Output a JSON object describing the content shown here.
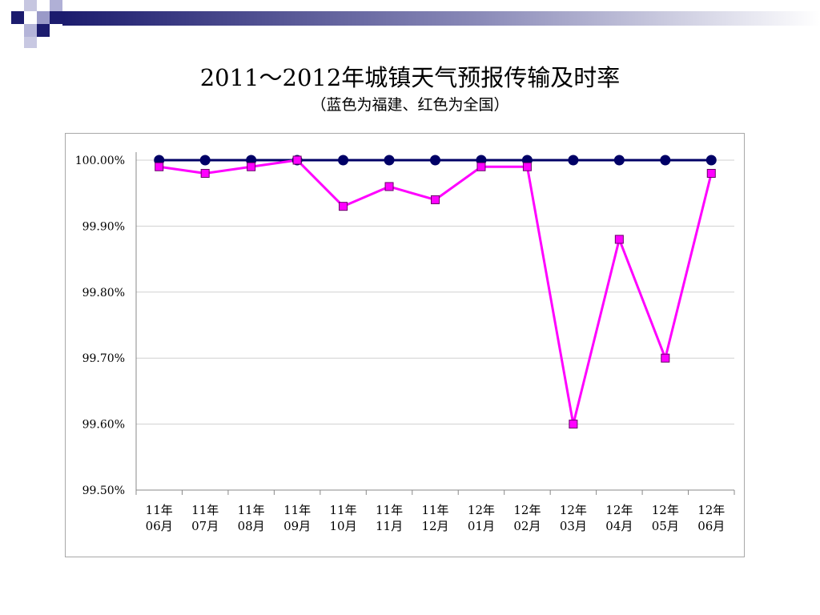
{
  "slide": {
    "title": "2011～2012年城镇天气预报传输及时率",
    "subtitle": "（蓝色为福建、红色为全国）"
  },
  "chart_data": {
    "type": "line",
    "title": "2011～2012年城镇天气预报传输及时率",
    "subtitle": "（蓝色为福建、红色为全国）",
    "categories": [
      [
        "11年",
        "06月"
      ],
      [
        "11年",
        "07月"
      ],
      [
        "11年",
        "08月"
      ],
      [
        "11年",
        "09月"
      ],
      [
        "11年",
        "10月"
      ],
      [
        "11年",
        "11月"
      ],
      [
        "11年",
        "12月"
      ],
      [
        "12年",
        "01月"
      ],
      [
        "12年",
        "02月"
      ],
      [
        "12年",
        "03月"
      ],
      [
        "12年",
        "04月"
      ],
      [
        "12年",
        "05月"
      ],
      [
        "12年",
        "06月"
      ]
    ],
    "series": [
      {
        "color": "#000066",
        "marker": "circle",
        "values": [
          100.0,
          100.0,
          100.0,
          100.0,
          100.0,
          100.0,
          100.0,
          100.0,
          100.0,
          100.0,
          100.0,
          100.0,
          100.0
        ]
      },
      {
        "color": "#ff00ff",
        "marker": "square",
        "values": [
          99.99,
          99.98,
          99.99,
          100.0,
          99.93,
          99.96,
          99.94,
          99.99,
          99.99,
          99.6,
          99.88,
          99.7,
          99.98
        ]
      }
    ],
    "ylim": [
      99.5,
      100.0
    ],
    "yticks": [
      "99.50%",
      "99.60%",
      "99.70%",
      "99.80%",
      "99.90%",
      "100.00%"
    ],
    "grid": true,
    "legend": "none"
  }
}
